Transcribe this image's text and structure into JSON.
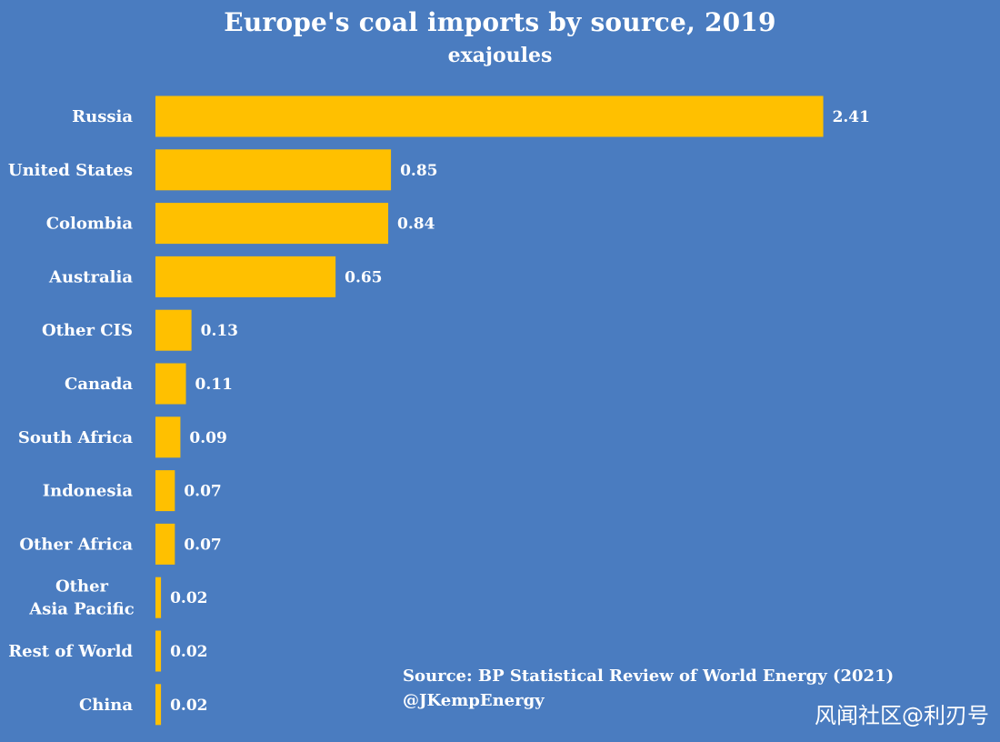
{
  "chart_data": {
    "type": "bar",
    "orientation": "horizontal",
    "title": "Europe's coal imports by source, 2019",
    "subtitle": "exajoules",
    "categories": [
      "Russia",
      "United States",
      "Colombia",
      "Australia",
      "Other CIS",
      "Canada",
      "South Africa",
      "Indonesia",
      "Other Africa",
      "Other\nAsia Pacific",
      "Rest of World",
      "China"
    ],
    "values": [
      2.41,
      0.85,
      0.84,
      0.65,
      0.13,
      0.11,
      0.09,
      0.07,
      0.07,
      0.02,
      0.02,
      0.02
    ],
    "value_labels": [
      "2.41",
      "0.85",
      "0.84",
      "0.65",
      "0.13",
      "0.11",
      "0.09",
      "0.07",
      "0.07",
      "0.02",
      "0.02",
      "0.02"
    ],
    "xlim": [
      0,
      2.5
    ],
    "grid": false,
    "xlabel": "",
    "ylabel": ""
  },
  "source": {
    "line1": "Source: BP Statistical Review of World Energy (2021)",
    "line2": "@JKempEnergy"
  },
  "watermark": "风闻社区@利刃号",
  "colors": {
    "background": "#4a7cc0",
    "bar": "#ffc000",
    "text": "#ffffff"
  }
}
